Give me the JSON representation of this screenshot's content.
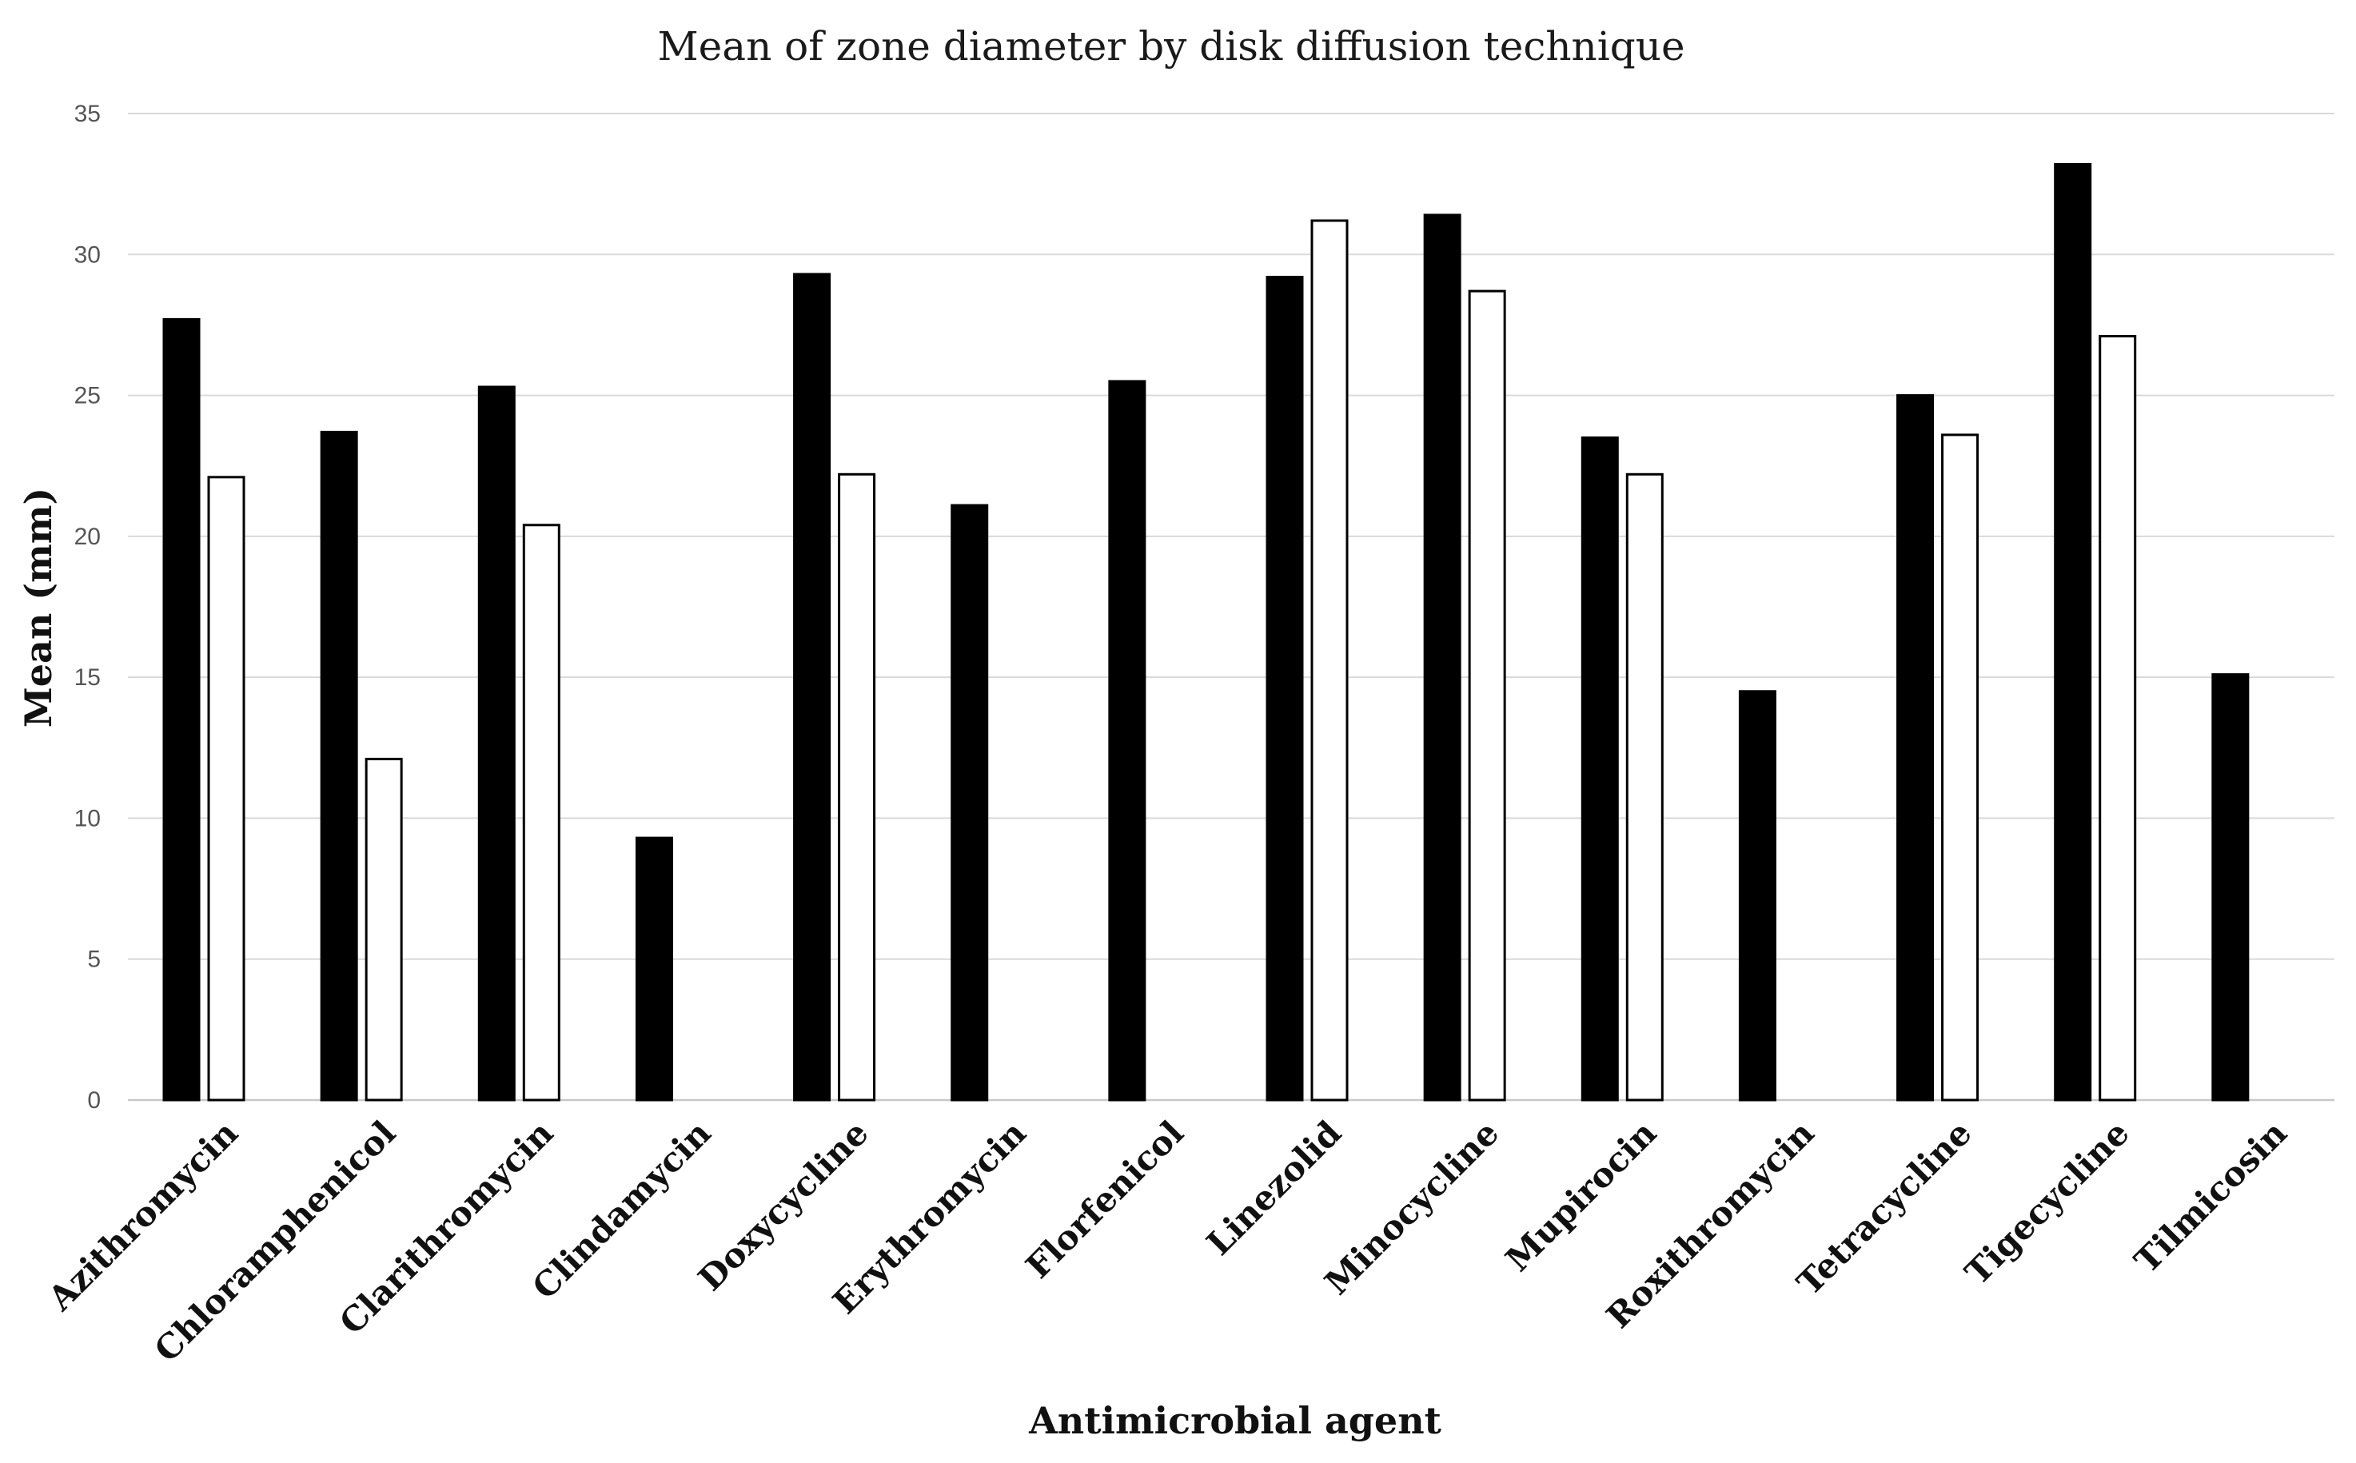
{
  "chart_data": {
    "type": "bar",
    "title": "Mean of zone diameter by disk diffusion technique",
    "xlabel": "Antimicrobial agent",
    "ylabel": "Mean (mm)",
    "ylim": [
      0,
      35
    ],
    "yticks": [
      0,
      5,
      10,
      15,
      20,
      25,
      30,
      35
    ],
    "grid": true,
    "legend": "none",
    "categories": [
      "Azithromycin",
      "Chloramphenicol",
      "Clarithromycin",
      "Clindamycin",
      "Doxycycline",
      "Erythromycin",
      "Florfenicol",
      "Linezolid",
      "Minocycline",
      "Mupirocin",
      "Roxithromycin",
      "Tetracycline",
      "Tigecycline",
      "Tilmicosin"
    ],
    "series": [
      {
        "fill": "#000000",
        "stroke": "#000000",
        "values": [
          27.7,
          23.7,
          25.3,
          9.3,
          29.3,
          21.1,
          25.5,
          29.2,
          31.4,
          23.5,
          14.5,
          25.0,
          33.2,
          15.1
        ]
      },
      {
        "fill": "#ffffff",
        "stroke": "#000000",
        "values": [
          22.1,
          12.1,
          20.4,
          null,
          22.2,
          null,
          null,
          31.2,
          28.7,
          22.2,
          null,
          23.6,
          27.1,
          null
        ]
      }
    ]
  }
}
